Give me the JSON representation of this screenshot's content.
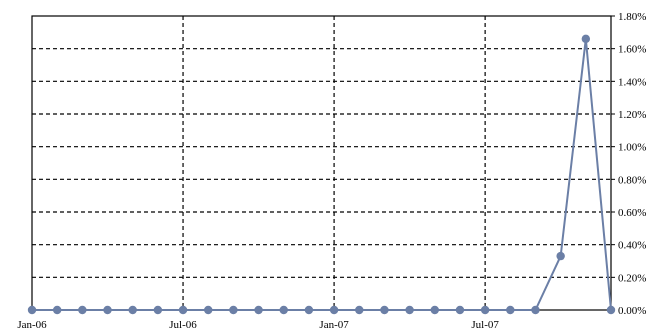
{
  "chart_data": {
    "type": "line",
    "title": "",
    "xlabel": "",
    "ylabel": "",
    "x_tick_labels": [
      "Jan-06",
      "Jul-06",
      "Jan-07",
      "Jul-07"
    ],
    "y_tick_labels": [
      "0.00%",
      "0.20%",
      "0.40%",
      "0.60%",
      "0.80%",
      "1.00%",
      "1.20%",
      "1.40%",
      "1.60%",
      "1.80%"
    ],
    "ylim": [
      0,
      1.8
    ],
    "y_unit": "%",
    "y_axis_side": "right",
    "xlim": [
      "2006-01",
      "2007-12"
    ],
    "grid": {
      "x": true,
      "y": true,
      "style": "dashed"
    },
    "legend": "none",
    "series": [
      {
        "color": "#6B7FA6",
        "x": [
          "2006-01",
          "2006-02",
          "2006-03",
          "2006-04",
          "2006-05",
          "2006-06",
          "2006-07",
          "2006-08",
          "2006-09",
          "2006-10",
          "2006-11",
          "2006-12",
          "2007-01",
          "2007-02",
          "2007-03",
          "2007-04",
          "2007-05",
          "2007-06",
          "2007-07",
          "2007-08",
          "2007-09",
          "2007-10",
          "2007-11",
          "2007-12"
        ],
        "values": [
          0,
          0,
          0,
          0,
          0,
          0,
          0,
          0,
          0,
          0,
          0,
          0,
          0,
          0,
          0,
          0,
          0,
          0,
          0,
          0,
          0,
          0.33,
          1.66,
          0
        ]
      }
    ]
  }
}
